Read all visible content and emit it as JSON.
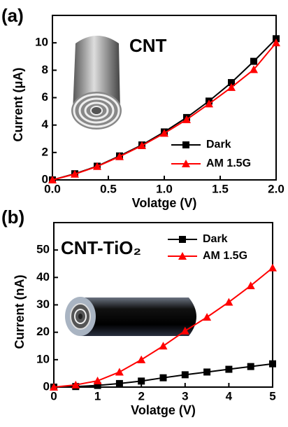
{
  "chart_data": [
    {
      "type": "line",
      "panel_label": "(a)",
      "annotation": "CNT",
      "xlabel": "Volatge (V)",
      "ylabel": "Current (μA)",
      "x": [
        0,
        0.2,
        0.4,
        0.6,
        0.8,
        1.0,
        1.2,
        1.4,
        1.6,
        1.8,
        2.0
      ],
      "series": [
        {
          "name": "Dark",
          "color": "#000000",
          "marker": "square",
          "values": [
            0,
            0.45,
            1.0,
            1.75,
            2.55,
            3.5,
            4.55,
            5.75,
            7.1,
            8.65,
            10.3
          ]
        },
        {
          "name": "AM 1.5G",
          "color": "#ff0000",
          "marker": "triangle",
          "values": [
            0,
            0.42,
            0.98,
            1.7,
            2.5,
            3.4,
            4.4,
            5.55,
            6.75,
            8.05,
            10.0
          ]
        }
      ],
      "xlim": [
        0,
        2.0
      ],
      "xticks": [
        {
          "value": 0,
          "label": "0.0"
        },
        {
          "value": 0.5,
          "label": "0.5"
        },
        {
          "value": 1,
          "label": "1.0"
        },
        {
          "value": 1.5,
          "label": "1.5"
        },
        {
          "value": 2,
          "label": "2.0"
        }
      ],
      "ylim": [
        0,
        12
      ],
      "yticks": [
        0,
        2,
        4,
        6,
        8,
        10
      ],
      "grid": false,
      "legend": "lower right"
    },
    {
      "type": "line",
      "panel_label": "(b)",
      "annotation": "CNT-TiO₂",
      "xlabel": "Volatge (V)",
      "ylabel": "Current (nA)",
      "x": [
        0,
        0.5,
        1,
        1.5,
        2,
        2.5,
        3,
        3.5,
        4,
        4.5,
        5
      ],
      "series": [
        {
          "name": "Dark",
          "color": "#000000",
          "marker": "square",
          "values": [
            0,
            0.2,
            0.6,
            1.3,
            2.2,
            3.4,
            4.5,
            5.5,
            6.5,
            7.5,
            8.5
          ]
        },
        {
          "name": "AM 1.5G",
          "color": "#ff0000",
          "marker": "triangle",
          "values": [
            0,
            0.8,
            2.3,
            5.5,
            10,
            15,
            20.5,
            25.5,
            31,
            37,
            43.5
          ]
        }
      ],
      "xlim": [
        0,
        5
      ],
      "xticks": [
        0,
        1,
        2,
        3,
        4,
        5
      ],
      "ylim": [
        0,
        60
      ],
      "yticks": [
        0,
        10,
        20,
        30,
        40,
        50
      ],
      "grid": false,
      "legend": "upper right"
    }
  ]
}
